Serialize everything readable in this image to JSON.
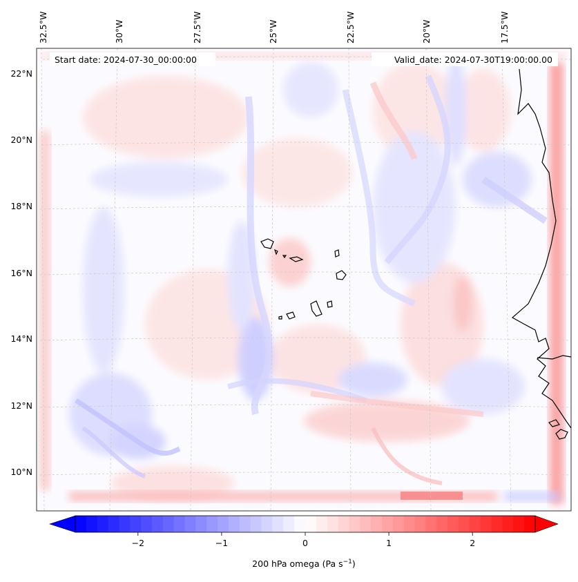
{
  "map": {
    "start_date": "Start date: 2024-07-30_00:00:00",
    "valid_date": "Valid_date: 2024-07-30T19:00:00.00",
    "lon_labels": [
      "32.5°W",
      "30°W",
      "27.5°W",
      "25°W",
      "22.5°W",
      "20°W",
      "17.5°W"
    ],
    "lat_labels": [
      "22°N",
      "20°N",
      "18°N",
      "16°N",
      "14°N",
      "12°N",
      "10°N"
    ],
    "field": "200 hPa omega",
    "units": "Pa s",
    "units_exp": "−1",
    "colormap": "bwr",
    "colors": {
      "negative": "#0000ff",
      "neutral": "#ffffff",
      "positive": "#ff0000"
    }
  },
  "colorbar": {
    "min": -2.75,
    "max": 2.75,
    "ticks": [
      {
        "value": -2,
        "label": "−2"
      },
      {
        "value": -1,
        "label": "−1"
      },
      {
        "value": 0,
        "label": "0"
      },
      {
        "value": 1,
        "label": "1"
      },
      {
        "value": 2,
        "label": "2"
      }
    ],
    "levels": 42
  }
}
